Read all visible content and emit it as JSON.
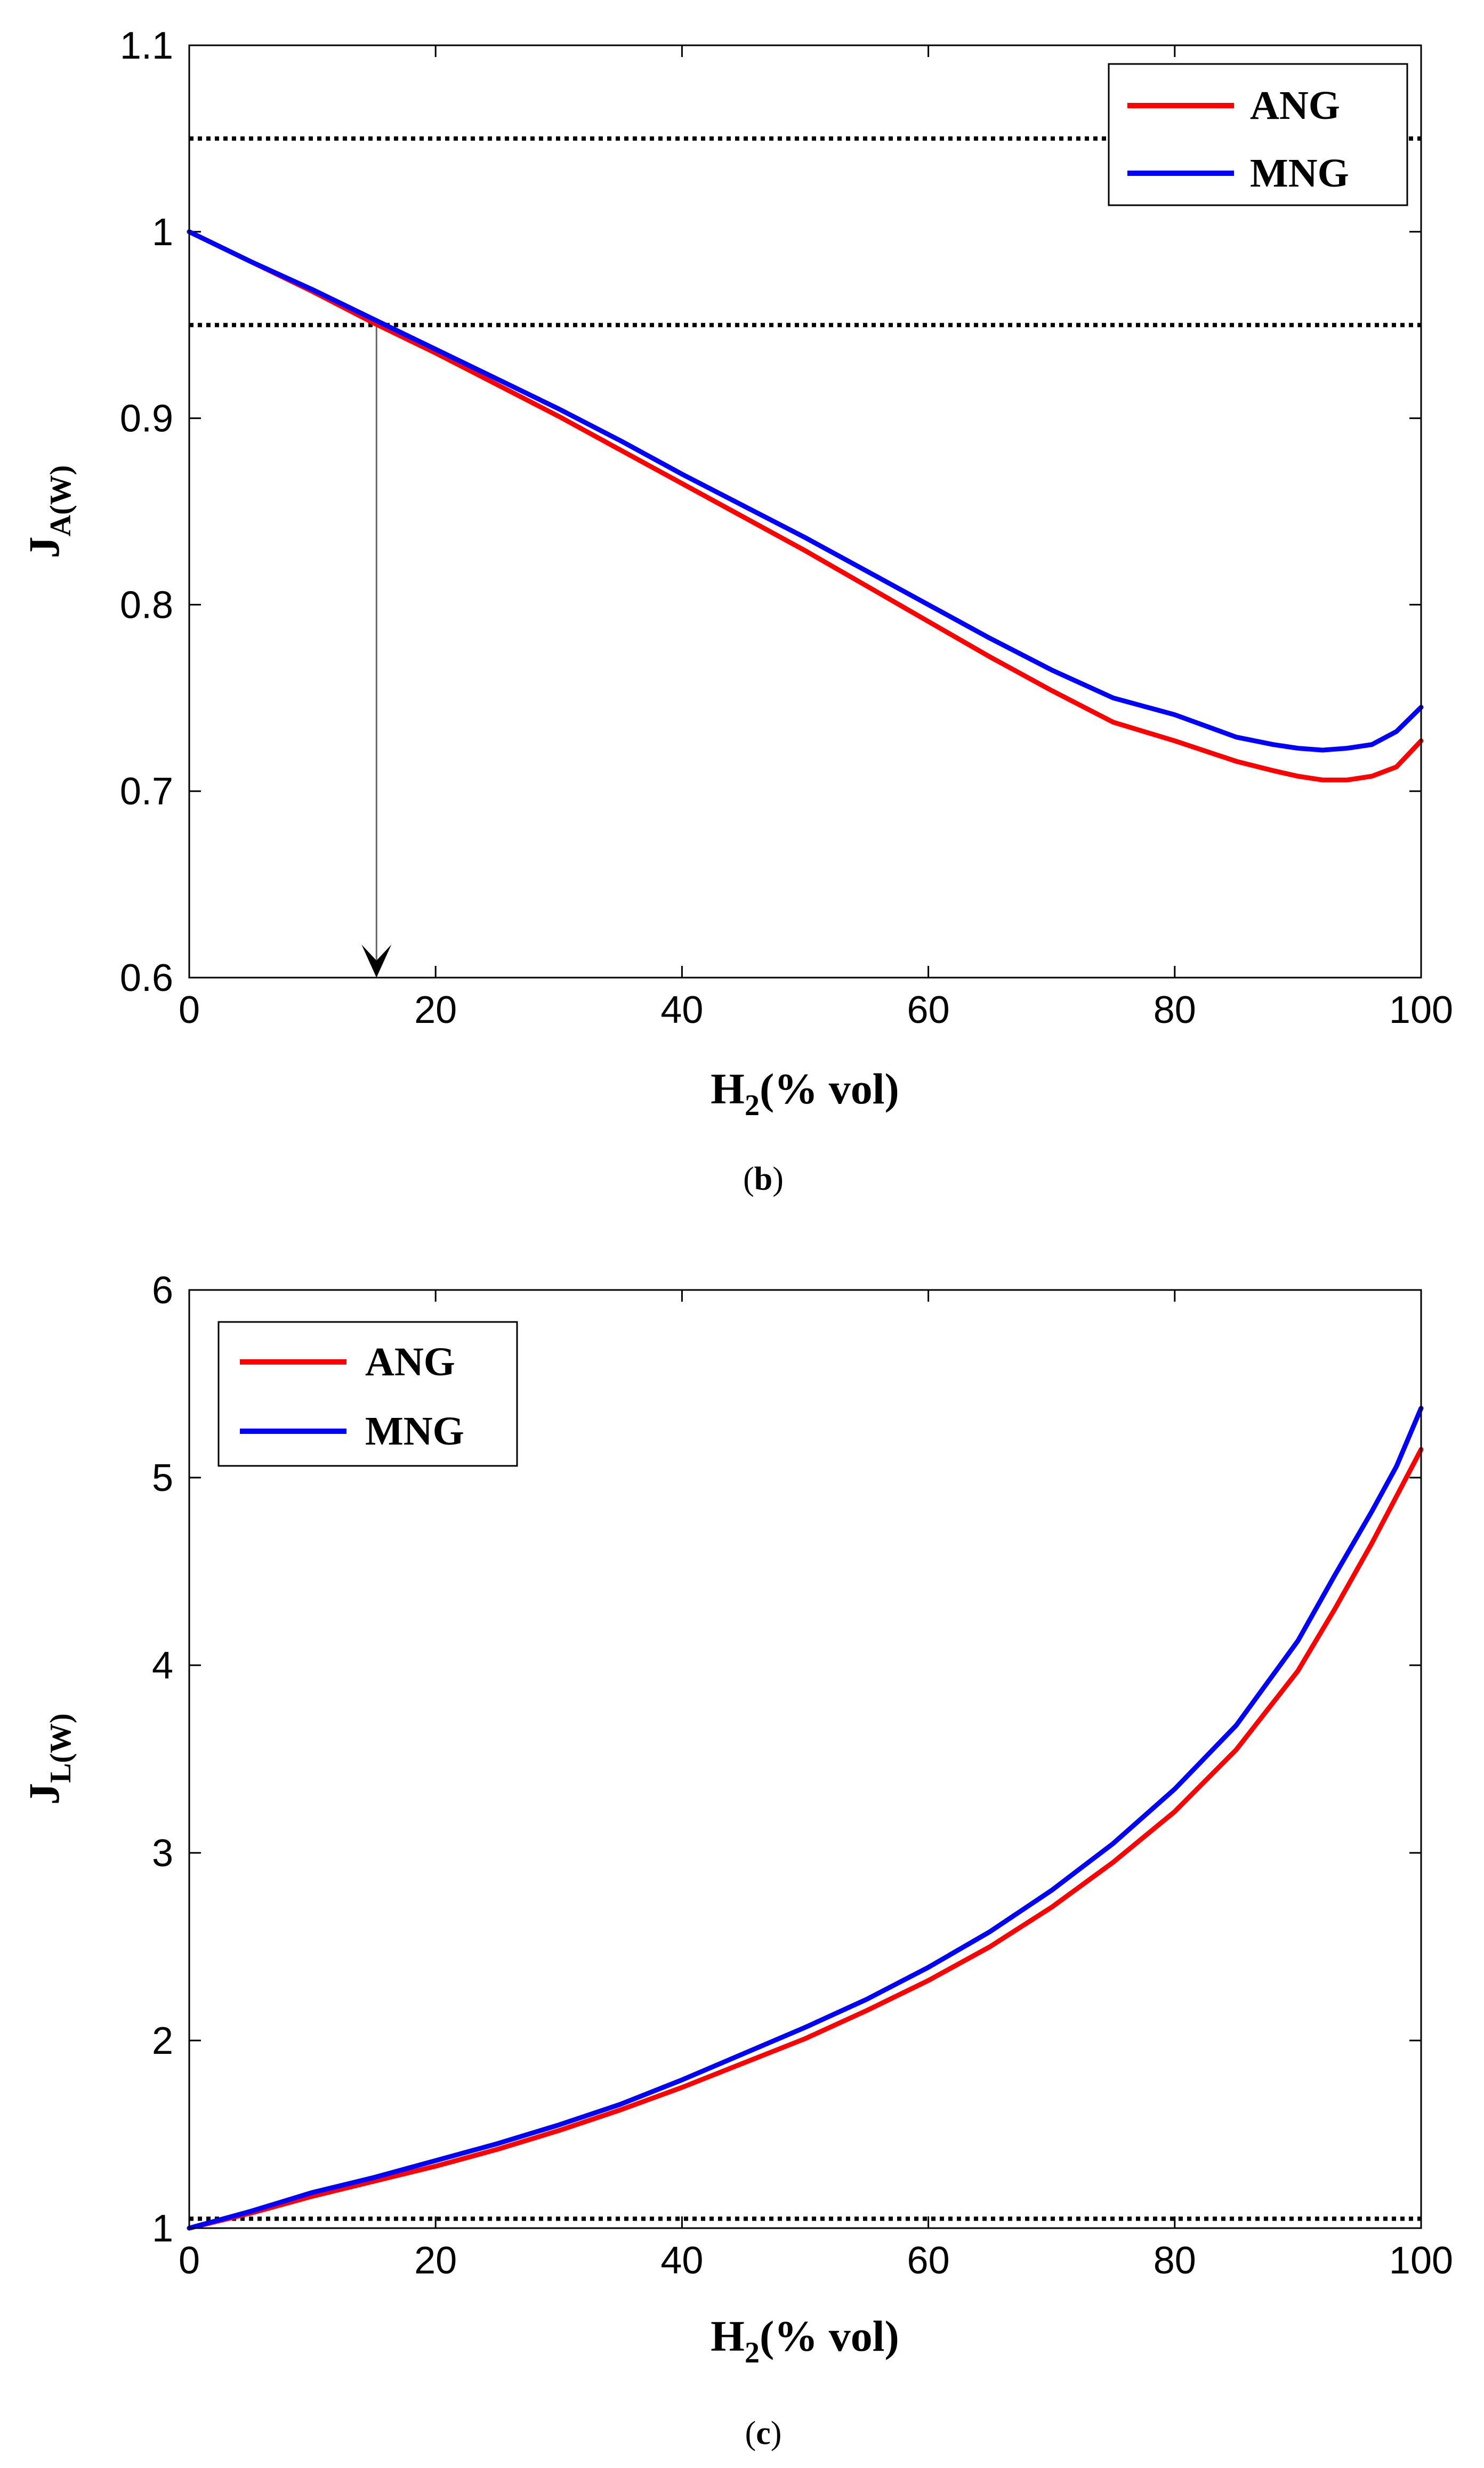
{
  "chart_data": [
    {
      "type": "line",
      "panel": "b",
      "caption": {
        "open": "(",
        "letter": "b",
        "close": ")"
      },
      "ylabel": {
        "main": "J",
        "sub": "A(W)"
      },
      "xlabel": {
        "main": "H",
        "sub": "2",
        "rest": "(% vol)"
      },
      "xlim": [
        0,
        100
      ],
      "ylim": [
        0.6,
        1.1
      ],
      "xticks": [
        0,
        20,
        40,
        60,
        80,
        100
      ],
      "yticks": [
        0.6,
        0.7,
        0.8,
        0.9,
        1,
        1.1
      ],
      "xtick_labels": [
        "0",
        "20",
        "40",
        "60",
        "80",
        "100"
      ],
      "ytick_labels": [
        "0.6",
        "0.7",
        "0.8",
        "0.9",
        "1",
        "1.1"
      ],
      "legend_position": "top-right",
      "reference_lines": [
        1.05,
        0.95
      ],
      "annotation": {
        "type": "arrow",
        "from": [
          15.2,
          0.95
        ],
        "to": [
          15.2,
          0.6
        ]
      },
      "x": [
        0,
        5,
        10,
        15,
        20,
        25,
        30,
        35,
        40,
        45,
        50,
        55,
        60,
        65,
        70,
        75,
        80,
        85,
        88,
        90,
        92,
        94,
        96,
        98,
        100
      ],
      "series": [
        {
          "name": "ANG",
          "color": "#ff0000",
          "values": [
            1.0,
            0.984,
            0.968,
            0.951,
            0.935,
            0.918,
            0.901,
            0.883,
            0.865,
            0.847,
            0.829,
            0.81,
            0.791,
            0.772,
            0.754,
            0.737,
            0.727,
            0.716,
            0.711,
            0.708,
            0.706,
            0.706,
            0.708,
            0.713,
            0.727
          ]
        },
        {
          "name": "MNG",
          "color": "#0000ff",
          "values": [
            1.0,
            0.984,
            0.969,
            0.953,
            0.937,
            0.921,
            0.905,
            0.888,
            0.87,
            0.853,
            0.836,
            0.818,
            0.8,
            0.782,
            0.765,
            0.75,
            0.741,
            0.729,
            0.725,
            0.723,
            0.722,
            0.723,
            0.725,
            0.732,
            0.745
          ]
        }
      ]
    },
    {
      "type": "line",
      "panel": "c",
      "caption": {
        "open": "(",
        "letter": "c",
        "close": ")"
      },
      "ylabel": {
        "main": "J",
        "sub": "L(W)"
      },
      "xlabel": {
        "main": "H",
        "sub": "2",
        "rest": "(% vol)"
      },
      "xlim": [
        0,
        100
      ],
      "ylim": [
        1,
        6
      ],
      "xticks": [
        0,
        20,
        40,
        60,
        80,
        100
      ],
      "yticks": [
        1,
        2,
        3,
        4,
        5,
        6
      ],
      "xtick_labels": [
        "0",
        "20",
        "40",
        "60",
        "80",
        "100"
      ],
      "ytick_labels": [
        "1",
        "2",
        "3",
        "4",
        "5",
        "6"
      ],
      "legend_position": "top-left",
      "reference_lines": [
        1.05
      ],
      "x": [
        0,
        5,
        10,
        15,
        20,
        25,
        30,
        35,
        40,
        45,
        50,
        55,
        60,
        65,
        70,
        75,
        80,
        85,
        90,
        93,
        96,
        98,
        100
      ],
      "series": [
        {
          "name": "ANG",
          "color": "#ff0000",
          "values": [
            1.0,
            1.08,
            1.17,
            1.25,
            1.33,
            1.42,
            1.52,
            1.63,
            1.75,
            1.88,
            2.01,
            2.16,
            2.32,
            2.5,
            2.71,
            2.95,
            3.22,
            3.55,
            3.97,
            4.3,
            4.65,
            4.9,
            5.15
          ]
        },
        {
          "name": "MNG",
          "color": "#0000ff",
          "values": [
            1.0,
            1.09,
            1.19,
            1.27,
            1.36,
            1.45,
            1.55,
            1.66,
            1.79,
            1.93,
            2.07,
            2.22,
            2.39,
            2.58,
            2.8,
            3.05,
            3.34,
            3.68,
            4.13,
            4.48,
            4.82,
            5.06,
            5.37
          ]
        }
      ]
    }
  ]
}
